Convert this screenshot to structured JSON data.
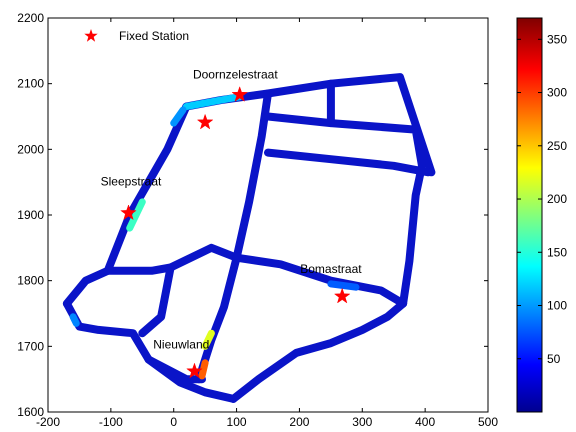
{
  "chart_data": {
    "type": "scatter",
    "title": "",
    "xlabel": "",
    "ylabel": "",
    "xlim": [
      -200,
      500
    ],
    "ylim": [
      1600,
      2200
    ],
    "xticks": [
      -200,
      -100,
      0,
      100,
      200,
      300,
      400,
      500
    ],
    "yticks": [
      1600,
      1700,
      1800,
      1900,
      2000,
      2100,
      2200
    ],
    "colorbar": {
      "range": [
        0,
        370
      ],
      "ticks": [
        50,
        100,
        150,
        200,
        250,
        300,
        350
      ],
      "colormap": "jet"
    },
    "legend": {
      "label": "Fixed Station",
      "position": "top-left",
      "marker": "red star"
    },
    "stations": [
      {
        "name": "Doornzelestraat",
        "x": 105,
        "y": 2083
      },
      {
        "name": "",
        "x": 50,
        "y": 2041
      },
      {
        "name": "Sleepstraat",
        "x": -72,
        "y": 1903
      },
      {
        "name": "Bomastraat",
        "x": 268,
        "y": 1776
      },
      {
        "name": "Nieuwland",
        "x": 33,
        "y": 1662
      }
    ],
    "labels": [
      {
        "text": "Doornzelestraat",
        "x": 98,
        "y": 2108
      },
      {
        "text": "Sleepstraat",
        "x": -68,
        "y": 1945
      },
      {
        "text": "Bomastraat",
        "x": 250,
        "y": 1812
      },
      {
        "text": "Nieuwland",
        "x": 12,
        "y": 1697
      }
    ],
    "roads": [
      {
        "points": [
          [
            20,
            2065
          ],
          [
            75,
            2075
          ],
          [
            150,
            2085
          ],
          [
            250,
            2100
          ],
          [
            360,
            2110
          ],
          [
            410,
            1965
          ]
        ]
      },
      {
        "points": [
          [
            -170,
            1765
          ],
          [
            -140,
            1800
          ],
          [
            -105,
            1815
          ],
          [
            -70,
            1900
          ],
          [
            -10,
            2000
          ],
          [
            20,
            2065
          ]
        ]
      },
      {
        "points": [
          [
            -170,
            1765
          ],
          [
            -150,
            1730
          ],
          [
            -120,
            1725
          ],
          [
            -65,
            1720
          ],
          [
            -40,
            1680
          ],
          [
            10,
            1645
          ],
          [
            50,
            1630
          ],
          [
            95,
            1620
          ]
        ]
      },
      {
        "points": [
          [
            -40,
            1680
          ],
          [
            20,
            1650
          ],
          [
            45,
            1650
          ]
        ]
      },
      {
        "points": [
          [
            -105,
            1815
          ],
          [
            -35,
            1815
          ],
          [
            -5,
            1820
          ],
          [
            60,
            1850
          ],
          [
            100,
            1835
          ]
        ]
      },
      {
        "points": [
          [
            -5,
            1820
          ],
          [
            -15,
            1770
          ],
          [
            -20,
            1745
          ],
          [
            -50,
            1720
          ]
        ]
      },
      {
        "points": [
          [
            40,
            1650
          ],
          [
            60,
            1710
          ],
          [
            80,
            1760
          ],
          [
            100,
            1835
          ],
          [
            120,
            1920
          ],
          [
            140,
            2020
          ],
          [
            150,
            2085
          ]
        ]
      },
      {
        "points": [
          [
            95,
            1620
          ],
          [
            135,
            1650
          ],
          [
            195,
            1690
          ],
          [
            250,
            1705
          ],
          [
            300,
            1725
          ],
          [
            340,
            1745
          ],
          [
            365,
            1765
          ]
        ]
      },
      {
        "points": [
          [
            100,
            1835
          ],
          [
            170,
            1825
          ],
          [
            250,
            1800
          ],
          [
            330,
            1785
          ],
          [
            365,
            1765
          ]
        ]
      },
      {
        "points": [
          [
            365,
            1765
          ],
          [
            375,
            1830
          ],
          [
            385,
            1930
          ],
          [
            395,
            1975
          ]
        ]
      },
      {
        "points": [
          [
            150,
            2050
          ],
          [
            250,
            2040
          ],
          [
            385,
            2030
          ],
          [
            395,
            1975
          ]
        ]
      },
      {
        "points": [
          [
            150,
            1995
          ],
          [
            250,
            1985
          ],
          [
            350,
            1975
          ],
          [
            405,
            1965
          ]
        ]
      },
      {
        "points": [
          [
            250,
            2100
          ],
          [
            250,
            2040
          ]
        ]
      }
    ],
    "hot_segments": [
      {
        "points": [
          [
            20,
            2065
          ],
          [
            75,
            2075
          ],
          [
            105,
            2080
          ]
        ],
        "value": 120
      },
      {
        "points": [
          [
            -70,
            1880
          ],
          [
            -50,
            1920
          ]
        ],
        "value": 160
      },
      {
        "points": [
          [
            50,
            1700
          ],
          [
            60,
            1720
          ]
        ],
        "value": 220
      },
      {
        "points": [
          [
            45,
            1655
          ],
          [
            50,
            1675
          ]
        ],
        "value": 290
      },
      {
        "points": [
          [
            0,
            2040
          ],
          [
            15,
            2060
          ]
        ],
        "value": 100
      },
      {
        "points": [
          [
            250,
            1795
          ],
          [
            290,
            1790
          ]
        ],
        "value": 80
      },
      {
        "points": [
          [
            -160,
            1745
          ],
          [
            -155,
            1735
          ]
        ],
        "value": 95
      }
    ]
  }
}
